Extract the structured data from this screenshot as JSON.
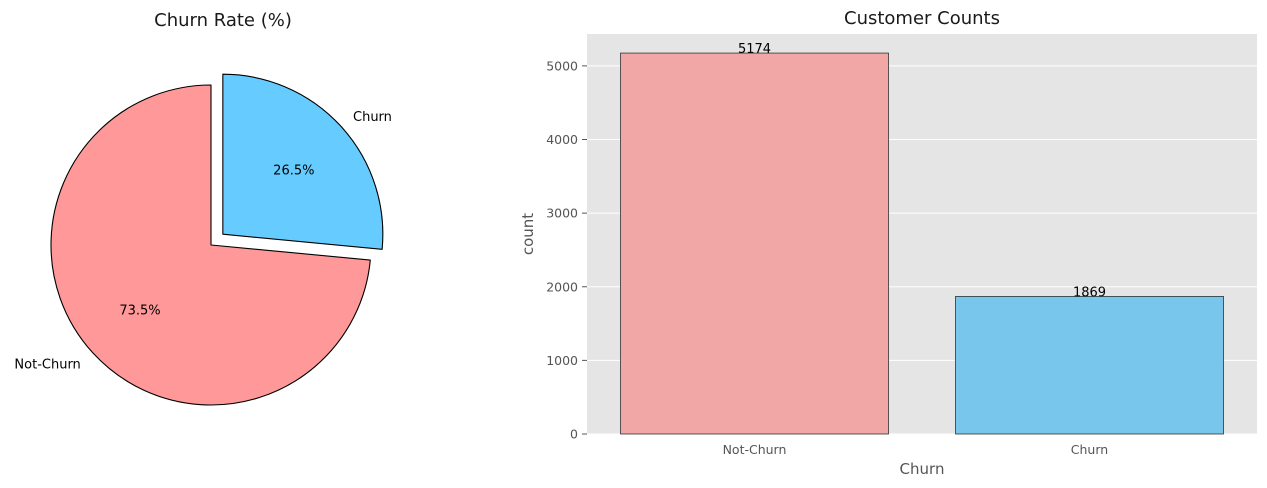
{
  "chart_data": [
    {
      "type": "pie",
      "title": "Churn Rate (%)",
      "labels": [
        "Not-Churn",
        "Churn"
      ],
      "values": [
        73.5,
        26.5
      ],
      "pct_labels": [
        "73.5%",
        "26.5%"
      ],
      "colors": [
        "#ff9999",
        "#66ccff"
      ],
      "explode": [
        0,
        0.1
      ],
      "edgecolor": "#000000"
    },
    {
      "type": "bar",
      "title": "Customer Counts",
      "categories": [
        "Not-Churn",
        "Churn"
      ],
      "values": [
        5174,
        1869
      ],
      "value_labels": [
        "5174",
        "1869"
      ],
      "colors": [
        "#f2a7a7",
        "#78c6eb"
      ],
      "xlabel": "Churn",
      "ylabel": "count",
      "ylim": [
        0,
        5433
      ],
      "yticks": [
        0,
        1000,
        2000,
        3000,
        4000,
        5000
      ],
      "ytick_labels": [
        "0",
        "1000",
        "2000",
        "3000",
        "4000",
        "5000"
      ],
      "grid": true,
      "background": "#e5e5e5"
    }
  ]
}
